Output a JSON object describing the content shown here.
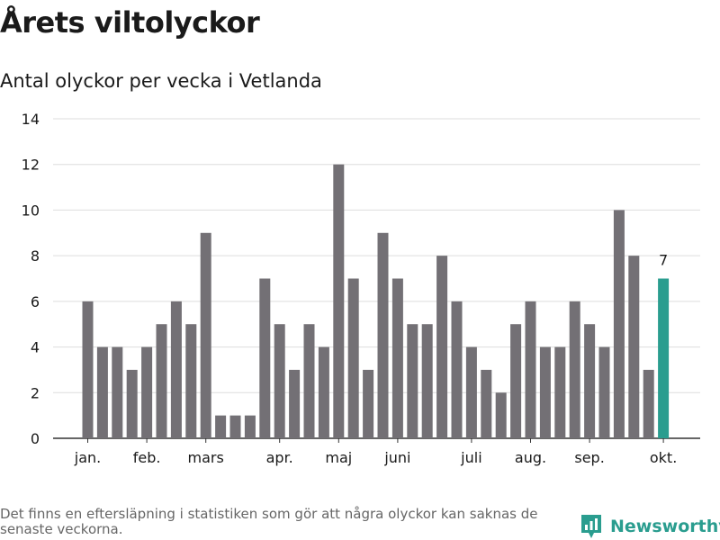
{
  "header": {
    "title": "Årets viltolyckor",
    "subtitle": "Antal olyckor per vecka i Vetlanda"
  },
  "footer": {
    "note": "Det finns en eftersläpning i statistiken som gör att några olyckor kan saknas de senaste veckorna.",
    "brand": "Newsworthy"
  },
  "colors": {
    "bar": "#737075",
    "highlight": "#2a9d8f",
    "grid": "#dddddd",
    "axis": "#333333",
    "text": "#1a1a1a"
  },
  "chart_data": {
    "type": "bar",
    "title": "Antal olyckor per vecka i Vetlanda",
    "xlabel": "",
    "ylabel": "",
    "ylim": [
      0,
      14
    ],
    "yticks": [
      0,
      2,
      4,
      6,
      8,
      10,
      12,
      14
    ],
    "grid": true,
    "weeks": [
      1,
      2,
      3,
      4,
      5,
      6,
      7,
      8,
      9,
      10,
      11,
      12,
      13,
      14,
      15,
      16,
      17,
      18,
      19,
      20,
      21,
      22,
      23,
      24,
      25,
      26,
      27,
      28,
      29,
      30,
      31,
      32,
      33,
      34,
      35,
      36,
      37,
      38,
      39,
      40
    ],
    "values": [
      6,
      4,
      4,
      3,
      4,
      5,
      6,
      5,
      9,
      1,
      1,
      1,
      7,
      5,
      3,
      5,
      4,
      12,
      7,
      3,
      9,
      7,
      5,
      5,
      8,
      6,
      4,
      3,
      2,
      5,
      6,
      4,
      4,
      6,
      5,
      4,
      10,
      8,
      3,
      7
    ],
    "highlight_index": 39,
    "highlight_label": "7",
    "month_labels": [
      {
        "label": "jan.",
        "week": 1
      },
      {
        "label": "feb.",
        "week": 5
      },
      {
        "label": "mars",
        "week": 9
      },
      {
        "label": "apr.",
        "week": 14
      },
      {
        "label": "maj",
        "week": 18
      },
      {
        "label": "juni",
        "week": 22
      },
      {
        "label": "juli",
        "week": 27
      },
      {
        "label": "aug.",
        "week": 31
      },
      {
        "label": "sep.",
        "week": 35
      },
      {
        "label": "okt.",
        "week": 40
      }
    ]
  }
}
